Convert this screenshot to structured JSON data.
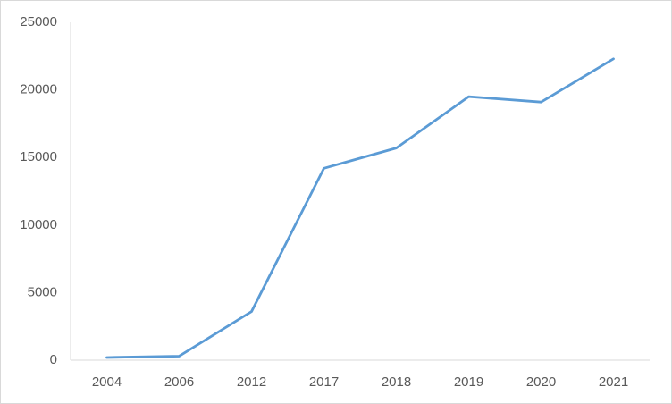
{
  "chart_data": {
    "type": "line",
    "categories": [
      "2004",
      "2006",
      "2012",
      "2017",
      "2018",
      "2019",
      "2020",
      "2021"
    ],
    "values": [
      200,
      300,
      3600,
      14200,
      15700,
      19500,
      19100,
      22300
    ],
    "color": "#5b9bd5",
    "ylim": [
      0,
      25000
    ],
    "yticks": [
      0,
      5000,
      10000,
      15000,
      20000,
      25000
    ],
    "grid": false
  }
}
